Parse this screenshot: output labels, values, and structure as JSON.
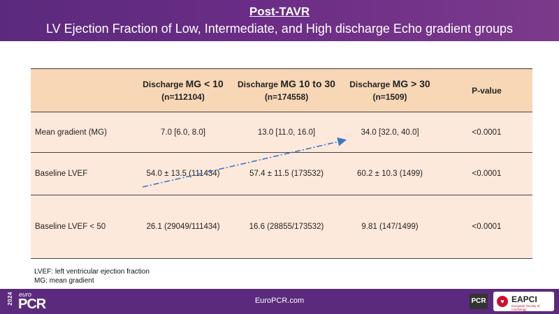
{
  "header": {
    "title": "Post-TAVR",
    "subtitle": "LV Ejection Fraction of Low, Intermediate, and High discharge Echo gradient groups"
  },
  "table": {
    "headers": [
      {
        "prefix": "",
        "mg": "",
        "n": ""
      },
      {
        "prefix": "Discharge ",
        "mg": "MG < 10",
        "n": "(n=112104)"
      },
      {
        "prefix": "Discharge ",
        "mg": "MG 10 to 30",
        "n": "(n=174558)"
      },
      {
        "prefix": "Discharge ",
        "mg": "MG > 30",
        "n": "(n=1509)"
      },
      {
        "prefix": "",
        "mg": "",
        "n": "",
        "plain": "P-value"
      }
    ],
    "rows": [
      {
        "label": "Mean gradient (MG)",
        "cells": [
          "7.0 [6.0, 8.0]",
          "13.0 [11.0, 16.0]",
          "34.0 [32.0, 40.0]",
          "<0.0001"
        ]
      },
      {
        "label": "Baseline LVEF",
        "cells": [
          "54.0 ± 13.5 (111434)",
          "57.4 ± 11.5 (173532)",
          "60.2 ± 10.3 (1499)",
          "<0.0001"
        ]
      },
      {
        "label": "Baseline LVEF < 50",
        "cells": [
          "26.1 (29049/111434)",
          "16.6 (28855/173532)",
          "9.81 (147/1499)",
          "<0.0001"
        ]
      }
    ]
  },
  "footnotes": [
    "LVEF: left ventricular ejection fraction",
    "MG: mean gradient"
  ],
  "footer": {
    "year": "2024",
    "logo_small": "euro",
    "logo_big": "PCR",
    "site": "EuroPCR.com",
    "pcr_badge": "PCR",
    "eapci_name": "EAPCI",
    "eapci_tag": "European Society of Cardiology"
  },
  "colors": {
    "header": "#5b2a7d",
    "table_header": "#f8d7b6",
    "table_body": "#fde9dc",
    "arrow": "#3a78c2"
  }
}
